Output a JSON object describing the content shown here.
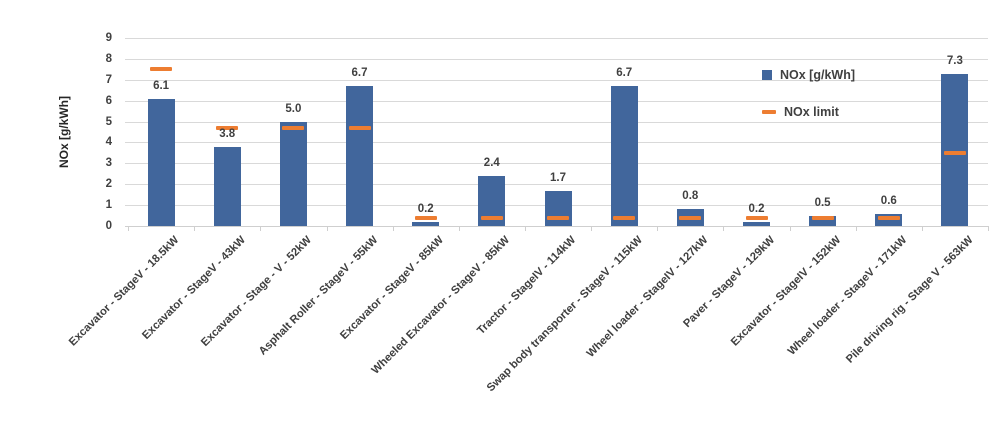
{
  "chart_data": {
    "type": "bar",
    "title": "",
    "ylabel": "NOx [g/kWh]",
    "ylim": [
      0,
      9
    ],
    "ytick_labels": [
      "0",
      "1",
      "2",
      "3",
      "4",
      "5",
      "6",
      "7",
      "8",
      "9"
    ],
    "grid": true,
    "legend_position": "inside-top-right",
    "categories": [
      "Excavator - StageV - 18.5kW",
      "Excavator - StageV - 43kW",
      "Excavator - Stage - V - 52kW",
      "Asphalt Roller - StageV - 55kW",
      "Excavator - StageV - 85kW",
      "Wheeled Excavator - StageV - 85kW",
      "Tractor - StageIV - 114kW",
      "Swap body transporter - StageV - 115kW",
      "Wheel loader - StageIV - 127kW",
      "Paver - StageV - 129kW",
      "Excavator - StageIV - 152kW",
      "Wheel loader - StageV - 171kW",
      "Pile driving rig - Stage V - 563kW"
    ],
    "series": [
      {
        "name": "NOx [g/kWh]",
        "type": "bar",
        "color": "#41669C",
        "values": [
          6.1,
          3.8,
          5.0,
          6.7,
          0.2,
          2.4,
          1.7,
          6.7,
          0.8,
          0.2,
          0.5,
          0.6,
          7.3
        ],
        "labels": [
          "6.1",
          "3.8",
          "5.0",
          "6.7",
          "0.2",
          "2.4",
          "1.7",
          "6.7",
          "0.8",
          "0.2",
          "0.5",
          "0.6",
          "7.3"
        ]
      },
      {
        "name": "NOx limit",
        "type": "dash",
        "color": "#ED7D31",
        "values": [
          7.5,
          4.7,
          4.7,
          4.7,
          0.4,
          0.4,
          0.4,
          0.4,
          0.4,
          0.4,
          0.4,
          0.4,
          3.5
        ]
      }
    ],
    "colors": {
      "grid": "#D9D9D9",
      "axis_text": "#404040",
      "background": "#FFFFFF"
    }
  }
}
